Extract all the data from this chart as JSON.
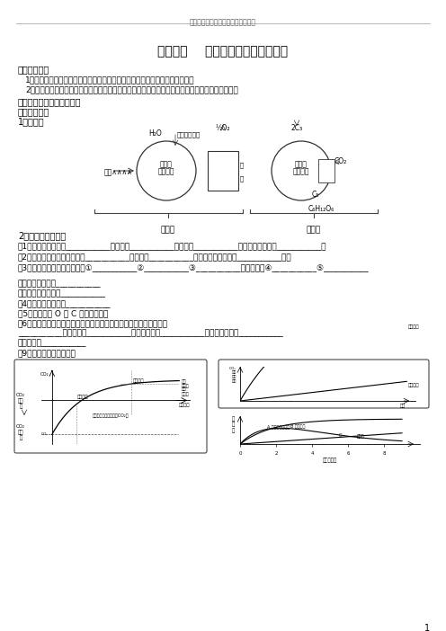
{
  "header_text": "金中河西高三生物学三轮复习小专题",
  "title": "小专题一    光合作用与呼吸作用专题",
  "s1_title": "【教学目的】",
  "s1_items": [
    "1、采用从点到面的方法，加强学生对基础知识识记，并形成唯物主义整体观。",
    "2、通过列举少量例题，训练学生思维，构建这两者的知识联系，促进学生的综合分析能力的提高。"
  ],
  "s2_title": "【复习过程】【第一课时】",
  "s3_title": "一、光合作用",
  "s4_title": "1、识记图",
  "s5_title": "2、基本知识回顾：",
  "qa": [
    "（1）光反应的场所是___________，原料是___________，产物有___________，为暗反应提供了___________。",
    "（2）暗反应所需的无机原料是___________，其可从___________直接进入叶肉细胞的___________中。",
    "（3）影响光合的外因最主要有①___________②___________③___________，还可能有④___________⑤___________",
    "各自如何影响过程___________",
    "在生产上如何应用之___________",
    "（4）能量变化过程是___________",
    "（5）物质变化 O 和 C 的变化过程。",
    "（6）叶绿体中的色素有哪些？（按颜色上的色素的从上到下顺序写）",
    "___________，分离液是___________，其提取液是___________，分离的方法叫___________",
    "分离原理是___________",
    "（9）几个常见的曲线分析"
  ],
  "footer_page": "1",
  "bg_color": "#ffffff",
  "tc": "#000000"
}
